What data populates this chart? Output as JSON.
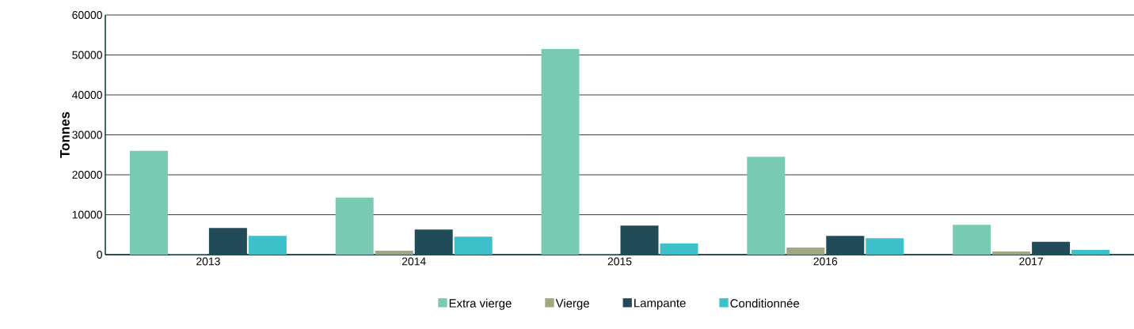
{
  "chart_data": {
    "type": "bar",
    "ylabel": "Tonnes",
    "categories": [
      "2013",
      "2014",
      "2015",
      "2016",
      "2017"
    ],
    "series": [
      {
        "name": "Extra vierge",
        "color": "#79cab3",
        "values": [
          26000,
          14300,
          51500,
          24500,
          7500
        ]
      },
      {
        "name": "Vierge",
        "color": "#a3a67f",
        "values": [
          100,
          1000,
          100,
          1800,
          800
        ]
      },
      {
        "name": "Lampante",
        "color": "#224b5a",
        "values": [
          6700,
          6300,
          7300,
          4700,
          3200
        ]
      },
      {
        "name": "Conditionnée",
        "color": "#3cc0ca",
        "values": [
          4700,
          4500,
          2800,
          4100,
          1200
        ]
      }
    ],
    "ylim": [
      0,
      60000
    ],
    "yticks": [
      0,
      10000,
      20000,
      30000,
      40000,
      50000,
      60000
    ],
    "grid": "y",
    "legend": "bottom"
  }
}
